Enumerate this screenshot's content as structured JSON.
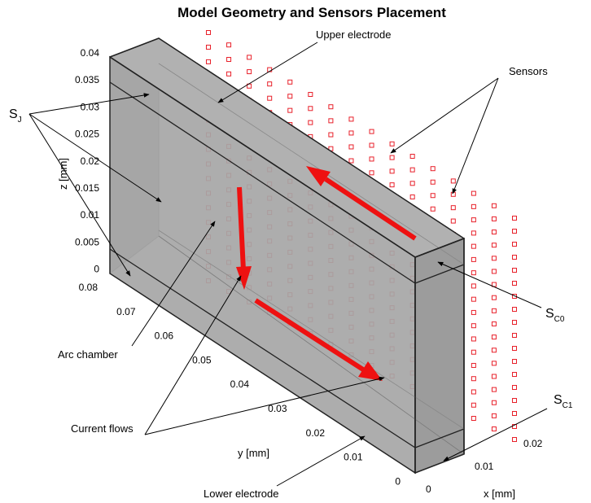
{
  "title": "Model Geometry and Sensors Placement",
  "labels": {
    "upper_electrode": "Upper electrode",
    "sensors": "Sensors",
    "arc_chamber": "Arc chamber",
    "current_flows": "Current flows",
    "lower_electrode": "Lower electrode",
    "sj_main": "S",
    "sj_sub": "J",
    "sc0_main": "S",
    "sc0_sub": "C0",
    "sc1_main": "S",
    "sc1_sub": "C1"
  },
  "axes": {
    "z_label": "z [mm]",
    "y_label": "y [mm]",
    "x_label": "x [mm]",
    "z_ticks": [
      "0.04",
      "0.035",
      "0.03",
      "0.025",
      "0.02",
      "0.015",
      "0.01",
      "0.005",
      "0"
    ],
    "y_ticks": [
      "0.08",
      "0.07",
      "0.06",
      "0.05",
      "0.04",
      "0.03",
      "0.02",
      "0.01",
      "0"
    ],
    "x_ticks": [
      "0",
      "0.01",
      "0.02"
    ]
  },
  "colors": {
    "box_fill": "#a8a8a8",
    "sensor": "#e8202a",
    "arrow": "#ee1111"
  }
}
